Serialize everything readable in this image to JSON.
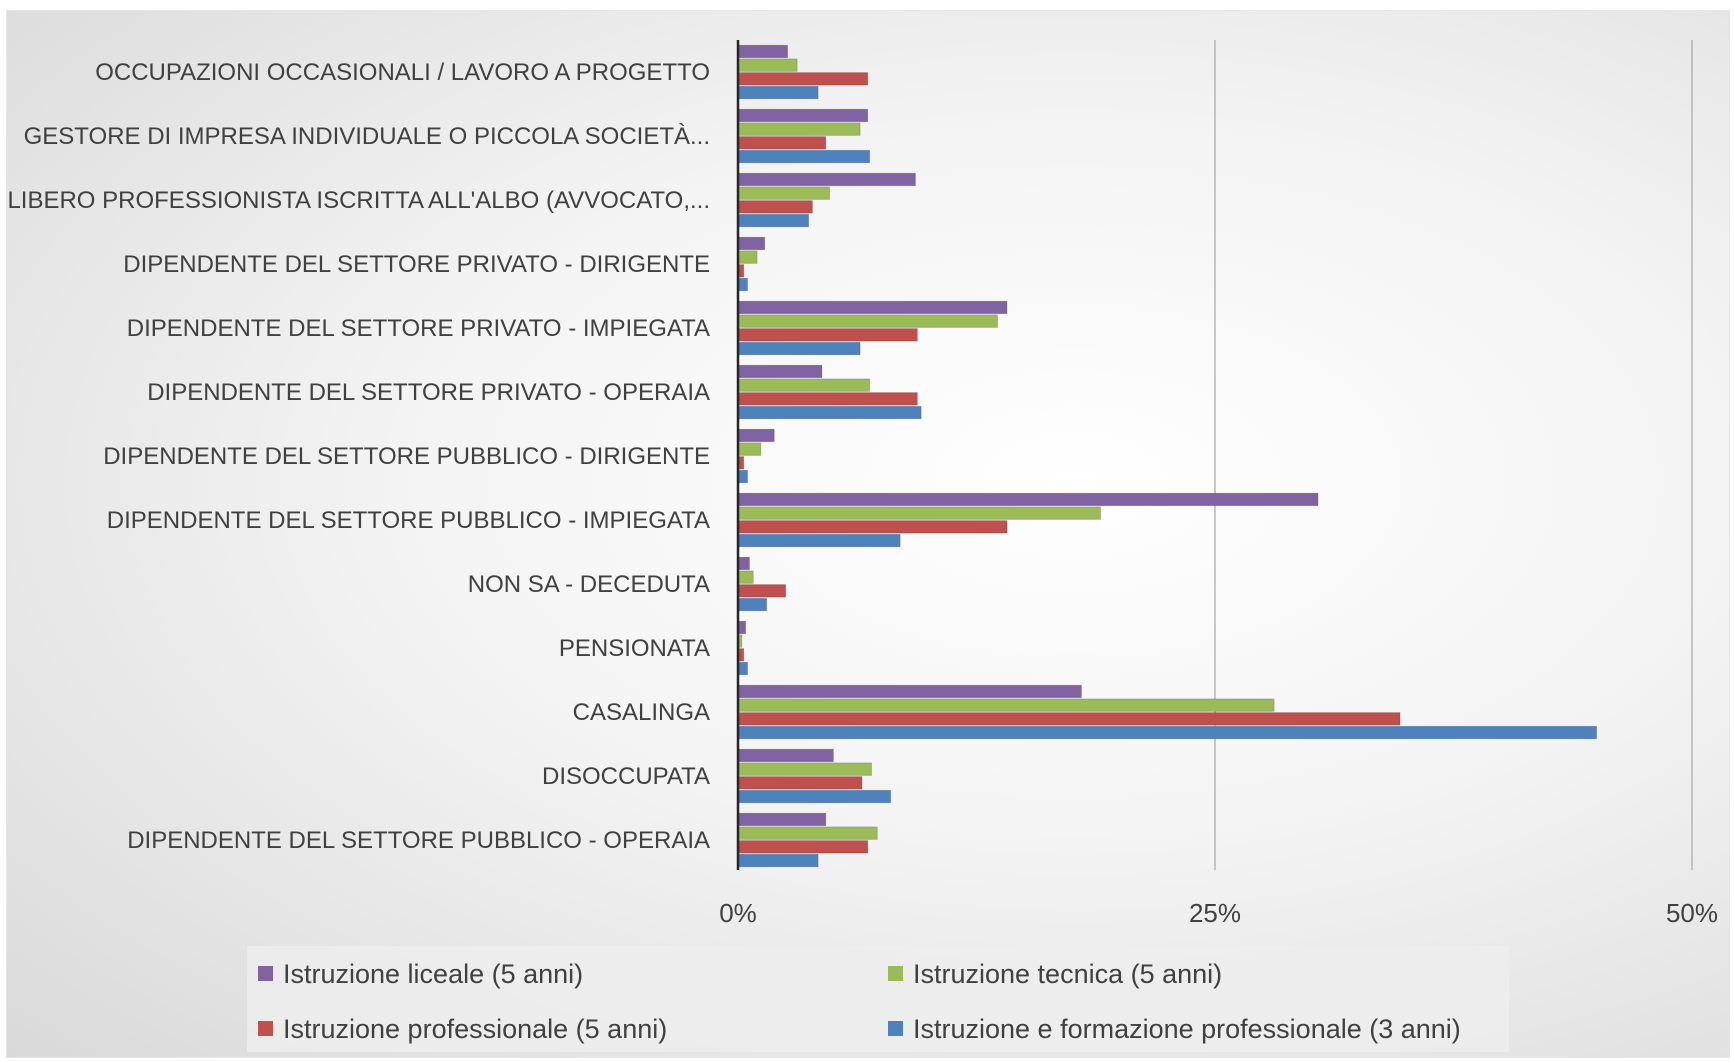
{
  "chart_data": {
    "type": "bar",
    "orientation": "horizontal",
    "categories": [
      "OCCUPAZIONI OCCASIONALI / LAVORO A PROGETTO",
      "GESTORE DI IMPRESA INDIVIDUALE O PICCOLA SOCIETÀ...",
      "LIBERO PROFESSIONISTA ISCRITTA ALL'ALBO (AVVOCATO,...",
      "DIPENDENTE DEL SETTORE PRIVATO  - DIRIGENTE",
      "DIPENDENTE DEL SETTORE PRIVATO  - IMPIEGATA",
      "DIPENDENTE DEL SETTORE PRIVATO - OPERAIA",
      "DIPENDENTE DEL SETTORE PUBBLICO - DIRIGENTE",
      "DIPENDENTE DEL SETTORE PUBBLICO - IMPIEGATA",
      "NON SA - DECEDUTA",
      "PENSIONATA",
      "CASALINGA",
      "DISOCCUPATA",
      "DIPENDENTE DEL SETTORE PUBBLICO - OPERAIA"
    ],
    "series": [
      {
        "name": "Istruzione liceale (5 anni)",
        "color": "#8064a2",
        "values": [
          2.6,
          6.8,
          9.3,
          1.4,
          14.1,
          4.4,
          1.9,
          30.4,
          0.6,
          0.4,
          18.0,
          5.0,
          4.6
        ]
      },
      {
        "name": "Istruzione tecnica (5 anni)",
        "color": "#9bbb59",
        "values": [
          3.1,
          6.4,
          4.8,
          1.0,
          13.6,
          6.9,
          1.2,
          19.0,
          0.8,
          0.2,
          28.1,
          7.0,
          7.3
        ]
      },
      {
        "name": "Istruzione professionale (5 anni)",
        "color": "#c0504d",
        "values": [
          6.8,
          4.6,
          3.9,
          0.3,
          9.4,
          9.4,
          0.3,
          14.1,
          2.5,
          0.3,
          34.7,
          6.5,
          6.8
        ]
      },
      {
        "name": "Istruzione e formazione professionale (3 anni)",
        "color": "#4f81bd",
        "values": [
          4.2,
          6.9,
          3.7,
          0.5,
          6.4,
          9.6,
          0.5,
          8.5,
          1.5,
          0.5,
          45.0,
          8.0,
          4.2
        ]
      }
    ],
    "xlim": [
      0,
      50
    ],
    "xticks": [
      0,
      25,
      50
    ],
    "xtick_labels": [
      "0%",
      "25%",
      "50%"
    ],
    "grid": true,
    "legend_position": "bottom",
    "title": "",
    "xlabel": "",
    "ylabel": ""
  }
}
